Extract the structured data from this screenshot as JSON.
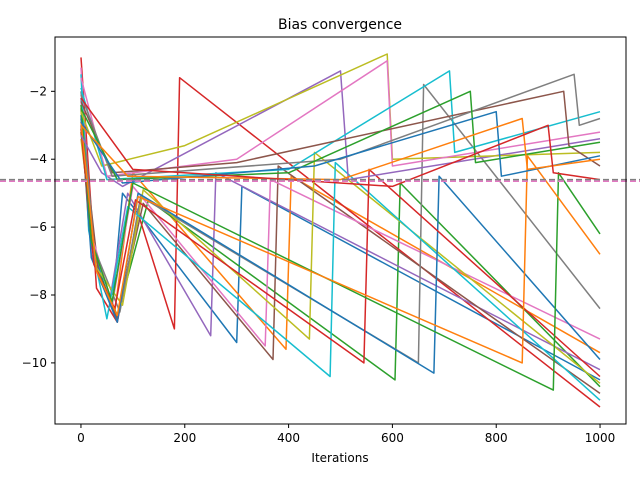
{
  "chart_data": {
    "type": "line",
    "title": "Bias convergence",
    "xlabel": "Iterations",
    "ylabel": "",
    "xlim": [
      -50,
      1050
    ],
    "ylim": [
      -11.8,
      -0.4
    ],
    "xticks": [
      0,
      200,
      400,
      600,
      800,
      1000
    ],
    "yticks": [
      -10,
      -8,
      -6,
      -4,
      -2
    ],
    "xtick_labels": [
      "0",
      "200",
      "400",
      "600",
      "800",
      "1000"
    ],
    "ytick_labels": [
      "−10",
      "−8",
      "−6",
      "−4",
      "−2"
    ],
    "grid": false,
    "legend": "none",
    "reference_lines": [
      {
        "type": "horizontal",
        "y": -4.6,
        "style": "dashed",
        "color": "#7f7f7f"
      },
      {
        "type": "horizontal",
        "y": -4.65,
        "style": "dashed",
        "color": "#e377c2"
      }
    ],
    "series": [
      {
        "color": "#1f77b4",
        "x": [
          0,
          20,
          60,
          80,
          300,
          310,
          1000
        ],
        "values": [
          -3.0,
          -6.5,
          -8.4,
          -5.0,
          -9.4,
          -4.8,
          -10.5
        ]
      },
      {
        "color": "#ff7f0e",
        "x": [
          0,
          15,
          65,
          100,
          395,
          405,
          1000
        ],
        "values": [
          -2.5,
          -6.0,
          -8.5,
          -4.4,
          -9.6,
          -4.5,
          -9.7
        ]
      },
      {
        "color": "#2ca02c",
        "x": [
          0,
          25,
          70,
          130,
          605,
          615,
          1000
        ],
        "values": [
          -3.2,
          -7.0,
          -8.6,
          -5.2,
          -10.5,
          -4.7,
          -10.7
        ]
      },
      {
        "color": "#d62728",
        "x": [
          0,
          30,
          70,
          110,
          180,
          190,
          1000
        ],
        "values": [
          -1.0,
          -7.8,
          -8.8,
          -5.6,
          -9.0,
          -1.6,
          -11.3
        ]
      },
      {
        "color": "#9467bd",
        "x": [
          0,
          20,
          55,
          90,
          250,
          260,
          1000
        ],
        "values": [
          -2.2,
          -6.8,
          -8.2,
          -5.0,
          -9.2,
          -4.4,
          -10.2
        ]
      },
      {
        "color": "#8c564b",
        "x": [
          0,
          35,
          70,
          120,
          370,
          380,
          1000
        ],
        "values": [
          -2.8,
          -7.5,
          -8.7,
          -5.3,
          -9.9,
          -4.2,
          -10.9
        ]
      },
      {
        "color": "#e377c2",
        "x": [
          0,
          20,
          60,
          100,
          355,
          365,
          1000
        ],
        "values": [
          -1.3,
          -6.2,
          -8.3,
          -4.8,
          -9.5,
          -4.6,
          -9.3
        ]
      },
      {
        "color": "#7f7f7f",
        "x": [
          0,
          25,
          75,
          115,
          650,
          660,
          1000
        ],
        "values": [
          -2.0,
          -6.6,
          -8.5,
          -5.1,
          -10.0,
          -1.8,
          -8.4
        ]
      },
      {
        "color": "#bcbd22",
        "x": [
          0,
          30,
          80,
          120,
          440,
          450,
          1000
        ],
        "values": [
          -3.4,
          -7.2,
          -8.3,
          -4.9,
          -9.3,
          -3.8,
          -10.6
        ]
      },
      {
        "color": "#17becf",
        "x": [
          0,
          15,
          50,
          90,
          480,
          490,
          1000
        ],
        "values": [
          -1.5,
          -6.1,
          -8.7,
          -5.4,
          -10.4,
          -4.1,
          -11.1
        ]
      },
      {
        "color": "#1f77b4",
        "x": [
          0,
          20,
          70,
          110,
          680,
          690,
          1000
        ],
        "values": [
          -2.7,
          -6.9,
          -8.8,
          -5.0,
          -10.3,
          -4.5,
          -9.9
        ]
      },
      {
        "color": "#d62728",
        "x": [
          0,
          25,
          65,
          105,
          545,
          555,
          1000
        ],
        "values": [
          -3.1,
          -7.1,
          -8.4,
          -5.2,
          -10.0,
          -4.3,
          -10.4
        ]
      },
      {
        "color": "#2ca02c",
        "x": [
          0,
          20,
          60,
          100,
          910,
          920,
          1000
        ],
        "values": [
          -2.4,
          -6.4,
          -8.2,
          -4.7,
          -10.8,
          -4.4,
          -6.2
        ]
      },
      {
        "color": "#ff7f0e",
        "x": [
          0,
          30,
          70,
          110,
          850,
          860,
          1000
        ],
        "values": [
          -2.9,
          -7.3,
          -8.6,
          -5.1,
          -10.0,
          -3.9,
          -6.8
        ]
      },
      {
        "color": "#9467bd",
        "x": [
          0,
          40,
          80,
          500,
          515,
          1000
        ],
        "values": [
          -3.3,
          -4.4,
          -4.8,
          -1.4,
          -4.6,
          -3.4
        ]
      },
      {
        "color": "#bcbd22",
        "x": [
          0,
          40,
          200,
          590,
          600,
          1000
        ],
        "values": [
          -2.6,
          -4.2,
          -3.6,
          -0.9,
          -4.0,
          -3.8
        ]
      },
      {
        "color": "#e377c2",
        "x": [
          0,
          50,
          300,
          590,
          600,
          1000
        ],
        "values": [
          -1.6,
          -4.5,
          -4.0,
          -1.1,
          -4.2,
          -3.2
        ]
      },
      {
        "color": "#17becf",
        "x": [
          0,
          50,
          400,
          710,
          720,
          1000
        ],
        "values": [
          -1.9,
          -4.6,
          -4.3,
          -1.4,
          -3.8,
          -2.6
        ]
      },
      {
        "color": "#8c564b",
        "x": [
          0,
          60,
          300,
          930,
          940,
          1000
        ],
        "values": [
          -2.3,
          -4.4,
          -4.1,
          -2.0,
          -3.6,
          -4.2
        ]
      },
      {
        "color": "#7f7f7f",
        "x": [
          0,
          60,
          500,
          950,
          960,
          1000
        ],
        "values": [
          -2.1,
          -4.5,
          -4.0,
          -1.5,
          -3.0,
          -2.8
        ]
      },
      {
        "color": "#2ca02c",
        "x": [
          0,
          70,
          400,
          750,
          760,
          1000
        ],
        "values": [
          -2.5,
          -4.6,
          -4.4,
          -2.0,
          -4.1,
          -3.5
        ]
      },
      {
        "color": "#1f77b4",
        "x": [
          0,
          80,
          450,
          800,
          810,
          1000
        ],
        "values": [
          -2.9,
          -4.7,
          -4.2,
          -2.6,
          -4.5,
          -3.9
        ]
      },
      {
        "color": "#ff7f0e",
        "x": [
          0,
          90,
          500,
          850,
          860,
          1000
        ],
        "values": [
          -3.0,
          -4.5,
          -4.6,
          -2.8,
          -4.3,
          -4.0
        ]
      },
      {
        "color": "#d62728",
        "x": [
          0,
          100,
          600,
          900,
          910,
          1000
        ],
        "values": [
          -2.2,
          -4.3,
          -4.8,
          -3.0,
          -4.4,
          -4.6
        ]
      }
    ]
  }
}
